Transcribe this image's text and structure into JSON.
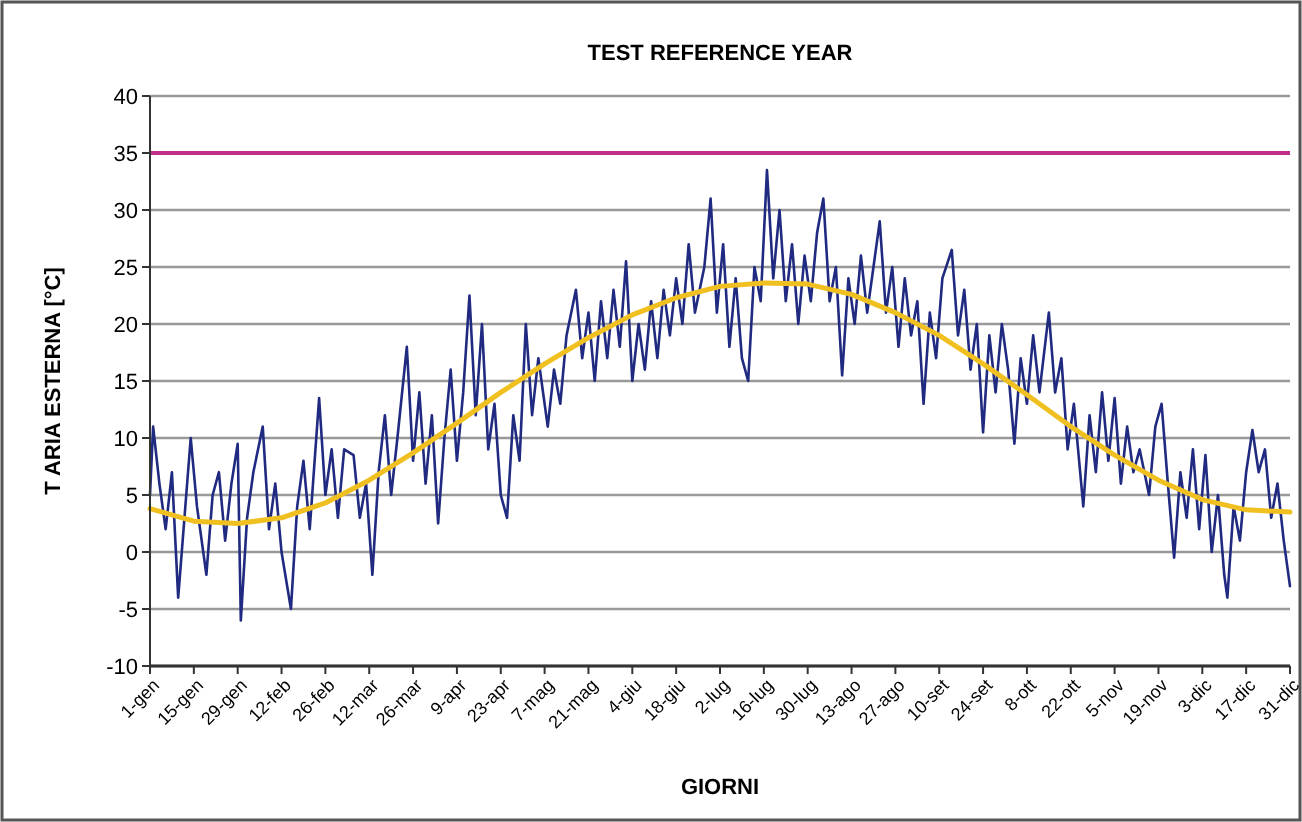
{
  "chart_data": {
    "type": "line",
    "title": "TEST REFERENCE YEAR",
    "xlabel": "GIORNI",
    "ylabel": "T ARIA ESTERNA [°C]",
    "xlim": [
      "--01-01",
      "--12-31"
    ],
    "ylim": [
      -10,
      40
    ],
    "yticks": [
      -10,
      -5,
      0,
      5,
      10,
      15,
      20,
      25,
      30,
      35,
      40
    ],
    "xticks": [
      {
        "value": "--01-01",
        "label": "1-gen"
      },
      {
        "value": "--01-15",
        "label": "15-gen"
      },
      {
        "value": "--01-29",
        "label": "29-gen"
      },
      {
        "value": "--02-12",
        "label": "12-feb"
      },
      {
        "value": "--02-26",
        "label": "26-feb"
      },
      {
        "value": "--03-12",
        "label": "12-mar"
      },
      {
        "value": "--03-26",
        "label": "26-mar"
      },
      {
        "value": "--04-09",
        "label": "9-apr"
      },
      {
        "value": "--04-23",
        "label": "23-apr"
      },
      {
        "value": "--05-07",
        "label": "7-mag"
      },
      {
        "value": "--05-21",
        "label": "21-mag"
      },
      {
        "value": "--06-04",
        "label": "4-giu"
      },
      {
        "value": "--06-18",
        "label": "18-giu"
      },
      {
        "value": "--07-02",
        "label": "2-lug"
      },
      {
        "value": "--07-16",
        "label": "16-lug"
      },
      {
        "value": "--07-30",
        "label": "30-lug"
      },
      {
        "value": "--08-13",
        "label": "13-ago"
      },
      {
        "value": "--08-27",
        "label": "27-ago"
      },
      {
        "value": "--09-10",
        "label": "10-set"
      },
      {
        "value": "--09-24",
        "label": "24-set"
      },
      {
        "value": "--10-08",
        "label": "8-ott"
      },
      {
        "value": "--10-22",
        "label": "22-ott"
      },
      {
        "value": "--11-05",
        "label": "5-nov"
      },
      {
        "value": "--11-19",
        "label": "19-nov"
      },
      {
        "value": "--12-03",
        "label": "3-dic"
      },
      {
        "value": "--12-17",
        "label": "17-dic"
      },
      {
        "value": "--12-31",
        "label": "31-dic"
      }
    ],
    "grid": "y",
    "marker": "none",
    "line_style": "solid",
    "ref_lines": [
      {
        "axis": "y",
        "value": 35,
        "color": "#c0308a"
      }
    ],
    "series": [
      {
        "color": "#1f2a80",
        "x": [
          "--01-01",
          "--01-02",
          "--01-04",
          "--01-06",
          "--01-08",
          "--01-10",
          "--01-12",
          "--01-14",
          "--01-16",
          "--01-19",
          "--01-21",
          "--01-23",
          "--01-25",
          "--01-27",
          "--01-29",
          "--01-30",
          "--02-01",
          "--02-03",
          "--02-06",
          "--02-08",
          "--02-10",
          "--02-12",
          "--02-15",
          "--02-17",
          "--02-19",
          "--02-21",
          "--02-24",
          "--02-26",
          "--02-28",
          "--03-02",
          "--03-04",
          "--03-07",
          "--03-09",
          "--03-11",
          "--03-13",
          "--03-15",
          "--03-17",
          "--03-19",
          "--03-21",
          "--03-24",
          "--03-26",
          "--03-28",
          "--03-30",
          "--04-01",
          "--04-03",
          "--04-05",
          "--04-07",
          "--04-09",
          "--04-11",
          "--04-13",
          "--04-15",
          "--04-17",
          "--04-19",
          "--04-21",
          "--04-23",
          "--04-25",
          "--04-27",
          "--04-29",
          "--05-01",
          "--05-03",
          "--05-05",
          "--05-08",
          "--05-10",
          "--05-12",
          "--05-14",
          "--05-17",
          "--05-19",
          "--05-21",
          "--05-23",
          "--05-25",
          "--05-27",
          "--05-29",
          "--05-31",
          "--06-02",
          "--06-04",
          "--06-06",
          "--06-08",
          "--06-10",
          "--06-12",
          "--06-14",
          "--06-16",
          "--06-18",
          "--06-20",
          "--06-22",
          "--06-24",
          "--06-27",
          "--06-29",
          "--07-01",
          "--07-03",
          "--07-05",
          "--07-07",
          "--07-09",
          "--07-11",
          "--07-13",
          "--07-15",
          "--07-17",
          "--07-19",
          "--07-21",
          "--07-23",
          "--07-25",
          "--07-27",
          "--07-29",
          "--07-31",
          "--08-02",
          "--08-04",
          "--08-06",
          "--08-08",
          "--08-10",
          "--08-12",
          "--08-14",
          "--08-16",
          "--08-18",
          "--08-20",
          "--08-22",
          "--08-24",
          "--08-26",
          "--08-28",
          "--08-30",
          "--09-01",
          "--09-03",
          "--09-05",
          "--09-07",
          "--09-09",
          "--09-11",
          "--09-14",
          "--09-16",
          "--09-18",
          "--09-20",
          "--09-22",
          "--09-24",
          "--09-26",
          "--09-28",
          "--09-30",
          "--10-02",
          "--10-04",
          "--10-06",
          "--10-08",
          "--10-10",
          "--10-12",
          "--10-15",
          "--10-17",
          "--10-19",
          "--10-21",
          "--10-23",
          "--10-26",
          "--10-28",
          "--10-30",
          "--11-01",
          "--11-03",
          "--11-05",
          "--11-07",
          "--11-09",
          "--11-11",
          "--11-13",
          "--11-16",
          "--11-18",
          "--11-20",
          "--11-22",
          "--11-24",
          "--11-26",
          "--11-28",
          "--11-30",
          "--12-02",
          "--12-04",
          "--12-06",
          "--12-08",
          "--12-10",
          "--12-11",
          "--12-13",
          "--12-15",
          "--12-17",
          "--12-19",
          "--12-21",
          "--12-23",
          "--12-25",
          "--12-27",
          "--12-29",
          "--12-31"
        ],
        "values": [
          5,
          11,
          6,
          2,
          7,
          -4,
          3,
          10,
          4,
          -2,
          5,
          7,
          1,
          6,
          9.5,
          -6,
          3,
          7,
          11,
          2,
          6,
          0,
          -5,
          4,
          8,
          2,
          13.5,
          5,
          9,
          3,
          9,
          8.5,
          3,
          6,
          -2,
          7,
          12,
          5,
          10,
          18,
          8,
          14,
          6,
          12,
          2.5,
          10,
          16,
          8,
          14,
          22.5,
          12,
          20,
          9,
          13,
          5,
          3,
          12,
          8,
          20,
          12,
          17,
          11,
          16,
          13,
          19,
          23,
          17,
          21,
          15,
          22,
          17,
          23,
          18,
          25.5,
          15,
          20,
          16,
          22,
          17,
          23,
          19,
          24,
          20,
          27,
          21,
          25,
          31,
          21,
          27,
          18,
          24,
          17,
          15,
          25,
          22,
          33.5,
          24,
          30,
          22,
          27,
          20,
          26,
          22,
          28,
          31,
          22,
          25,
          15.5,
          24,
          20,
          26,
          21,
          25,
          29,
          21,
          25,
          18,
          24,
          19,
          22,
          13,
          21,
          17,
          24,
          26.5,
          19,
          23,
          16,
          20,
          10.5,
          19,
          14,
          20,
          16,
          9.5,
          17,
          13,
          19,
          14,
          21,
          14,
          17,
          9,
          13,
          4,
          12,
          7,
          14,
          8,
          13.5,
          6,
          11,
          7,
          9,
          5,
          11,
          13,
          6,
          -0.5,
          7,
          3,
          9,
          2,
          8.5,
          0,
          5,
          -2,
          -4,
          4,
          1,
          7,
          10.7,
          7,
          9,
          3,
          6,
          1,
          -3
        ]
      },
      {
        "color": "#f0c020",
        "x": [
          "--01-01",
          "--01-15",
          "--01-29",
          "--02-12",
          "--02-26",
          "--03-12",
          "--03-26",
          "--04-09",
          "--04-23",
          "--05-07",
          "--05-21",
          "--06-04",
          "--06-18",
          "--07-02",
          "--07-16",
          "--07-30",
          "--08-13",
          "--08-27",
          "--09-10",
          "--09-24",
          "--10-08",
          "--10-22",
          "--11-05",
          "--11-19",
          "--12-03",
          "--12-17",
          "--12-31"
        ],
        "values": [
          3.8,
          2.7,
          2.5,
          3,
          4.3,
          6.3,
          8.7,
          11.3,
          14,
          16.5,
          18.8,
          20.8,
          22.3,
          23.3,
          23.6,
          23.5,
          22.6,
          21,
          19,
          16.5,
          13.8,
          11,
          8.5,
          6.3,
          4.6,
          3.7,
          3.5
        ]
      }
    ]
  }
}
